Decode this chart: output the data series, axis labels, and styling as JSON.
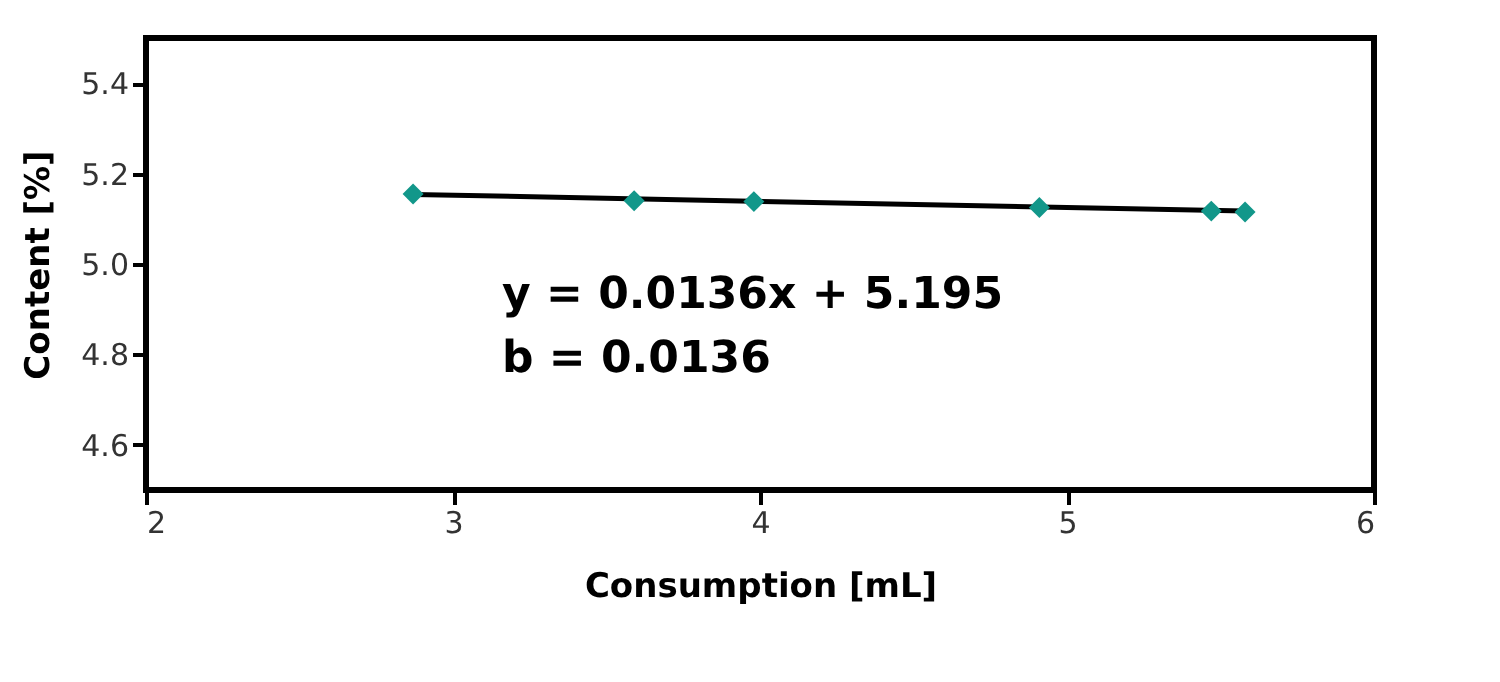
{
  "chart_data": {
    "type": "scatter",
    "xlabel": "Consumption [mL]",
    "ylabel": "Content [%]",
    "series": [
      {
        "type": "line",
        "color": "#000000",
        "line_style": "solid",
        "x": [
          2.87,
          5.58
        ],
        "values": [
          5.154,
          5.117
        ]
      },
      {
        "color": "#12978a",
        "marker": "diamond",
        "x": [
          2.87,
          3.59,
          3.98,
          4.91,
          5.47,
          5.58
        ],
        "values": [
          5.155,
          5.14,
          5.138,
          5.125,
          5.117,
          5.115
        ]
      }
    ],
    "xlim": [
      2,
      6
    ],
    "xticks": [
      2,
      3,
      4,
      5,
      6
    ],
    "ylim": [
      4.5,
      5.5
    ],
    "yticks": [
      4.6,
      4.8,
      {
        "value": 5.0,
        "label": "5.0"
      },
      5.2,
      5.4
    ],
    "annotations": [
      "y = 0.0136x + 5.195",
      "b = 0.0136"
    ],
    "grid": false
  }
}
